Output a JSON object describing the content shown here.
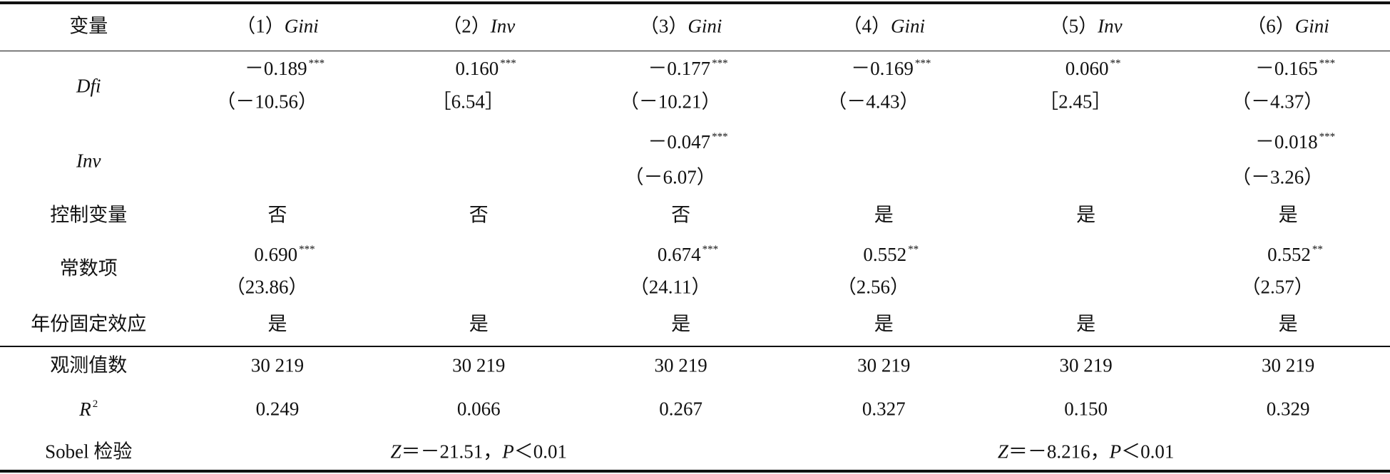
{
  "table": {
    "corner": "变量",
    "columns": [
      {
        "number": "（1）",
        "name": "Gini"
      },
      {
        "number": "（2）",
        "name": "Inv"
      },
      {
        "number": "（3）",
        "name": "Gini"
      },
      {
        "number": "（4）",
        "name": "Gini"
      },
      {
        "number": "（5）",
        "name": "Inv"
      },
      {
        "number": "（6）",
        "name": "Gini"
      }
    ],
    "rows": [
      {
        "label": "Dfi",
        "cells": [
          {
            "coef": "－0.189",
            "stars": "***",
            "stat": "（－10.56）"
          },
          {
            "coef": "0.160",
            "stars": "***",
            "stat": "［6.54］"
          },
          {
            "coef": "－0.177",
            "stars": "***",
            "stat": "（－10.21）"
          },
          {
            "coef": "－0.169",
            "stars": "***",
            "stat": "（－4.43）"
          },
          {
            "coef": "0.060",
            "stars": "**",
            "stat": "［2.45］"
          },
          {
            "coef": "－0.165",
            "stars": "***",
            "stat": "（－4.37）"
          }
        ]
      },
      {
        "label": "Inv",
        "cells": [
          null,
          null,
          {
            "coef": "－0.047",
            "stars": "***",
            "stat": "（－6.07）"
          },
          null,
          null,
          {
            "coef": "－0.018",
            "stars": "***",
            "stat": "（－3.26）"
          }
        ]
      },
      {
        "label": "控制变量",
        "cells": [
          "否",
          "否",
          "否",
          "是",
          "是",
          "是"
        ]
      },
      {
        "label": "常数项",
        "cells": [
          {
            "coef": "0.690",
            "stars": "***",
            "stat": "（23.86）"
          },
          null,
          {
            "coef": "0.674",
            "stars": "***",
            "stat": "（24.11）"
          },
          {
            "coef": "0.552",
            "stars": "**",
            "stat": "（2.56）"
          },
          null,
          {
            "coef": "0.552",
            "stars": "**",
            "stat": "（2.57）"
          }
        ]
      },
      {
        "label": "年份固定效应",
        "cells": [
          "是",
          "是",
          "是",
          "是",
          "是",
          "是"
        ]
      }
    ],
    "stats_rows": [
      {
        "label": "观测值数",
        "cells": [
          "30 219",
          "30 219",
          "30 219",
          "30 219",
          "30 219",
          "30 219"
        ]
      },
      {
        "label": {
          "base": "R",
          "sup": "2"
        },
        "cells": [
          "0.249",
          "0.066",
          "0.267",
          "0.327",
          "0.150",
          "0.329"
        ]
      }
    ],
    "sobel": {
      "label": "Sobel 检验",
      "tests": [
        {
          "z": "Z",
          "z_value": "＝－21.51",
          "sep": "，",
          "p": "P",
          "p_value": "＜0.01"
        },
        {
          "z": "Z",
          "z_value": "＝－8.216",
          "sep": "，",
          "p": "P",
          "p_value": "＜0.01"
        }
      ]
    }
  }
}
